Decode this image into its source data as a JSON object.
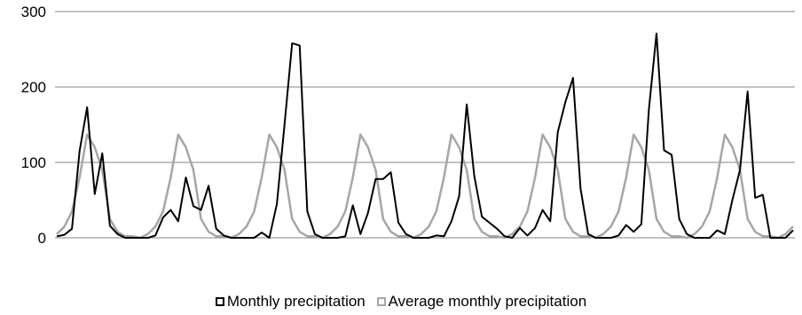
{
  "chart_data": {
    "type": "line",
    "title": "",
    "xlabel": "",
    "ylabel": "",
    "ylim": [
      0,
      300
    ],
    "yticks": [
      0,
      100,
      200,
      300
    ],
    "grid": "horizontal",
    "legend_position": "bottom",
    "series": [
      {
        "name": "Monthly precipitation",
        "color": "#000000",
        "values": [
          2,
          4,
          12,
          115,
          173,
          58,
          112,
          16,
          5,
          0,
          0,
          0,
          0,
          3,
          27,
          37,
          22,
          80,
          42,
          37,
          69,
          12,
          3,
          0,
          0,
          0,
          0,
          7,
          0,
          45,
          150,
          258,
          255,
          35,
          5,
          0,
          0,
          0,
          2,
          43,
          5,
          33,
          78,
          78,
          87,
          20,
          5,
          0,
          0,
          0,
          3,
          2,
          22,
          55,
          177,
          82,
          28,
          20,
          12,
          2,
          0,
          13,
          3,
          13,
          37,
          22,
          140,
          180,
          212,
          65,
          5,
          0,
          0,
          0,
          3,
          17,
          8,
          18,
          170,
          271,
          116,
          110,
          25,
          5,
          0,
          0,
          0,
          10,
          5,
          50,
          90,
          194,
          53,
          57,
          0,
          0,
          0,
          10
        ]
      },
      {
        "name": "Average monthly precipitation",
        "color": "#a6a6a6",
        "values": [
          5,
          15,
          35,
          80,
          137,
          120,
          90,
          25,
          8,
          2,
          2,
          0,
          5,
          15,
          35,
          80,
          137,
          120,
          90,
          25,
          8,
          2,
          2,
          0,
          5,
          15,
          35,
          80,
          137,
          120,
          90,
          25,
          8,
          2,
          2,
          0,
          5,
          15,
          35,
          80,
          137,
          120,
          90,
          25,
          8,
          2,
          2,
          0,
          5,
          15,
          35,
          80,
          137,
          120,
          90,
          25,
          8,
          2,
          2,
          0,
          5,
          15,
          35,
          80,
          137,
          120,
          90,
          25,
          8,
          2,
          2,
          0,
          5,
          15,
          35,
          80,
          137,
          120,
          90,
          25,
          8,
          2,
          2,
          0,
          5,
          15,
          35,
          80,
          137,
          120,
          90,
          25,
          8,
          2,
          2,
          0,
          5,
          15
        ]
      }
    ]
  }
}
